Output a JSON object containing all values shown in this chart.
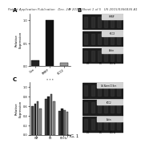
{
  "header_text": "Patent Application Publication   Dec. 24, 2015  Sheet 1 of 5   US 2015/0366836 A1",
  "footer_text": "FIG. 1",
  "bg_color": "#f5f5f5",
  "text_color": "#000000",
  "header_fontsize": 2.8,
  "footer_fontsize": 3.5,
  "panel_A_label": "A",
  "panel_A_bars": [
    0.12,
    1.0,
    0.07
  ],
  "panel_A_colors": [
    "#222222",
    "#111111",
    "#999999"
  ],
  "panel_A_ylabel": "Relative\nExpression",
  "panel_A_xticks": [
    "Con",
    "FMRP",
    "KCC2"
  ],
  "panel_A_ylim": [
    0,
    1.15
  ],
  "panel_A_yticks": [
    0,
    0.5,
    1.0
  ],
  "panel_B_label": "B",
  "panel_B_blot_bg": "#1a1a1a",
  "panel_B_label_bg": "#cccccc",
  "panel_B_blot1_label": "FMRP",
  "panel_B_blot2_label": "KCC2",
  "panel_B_blot3_label": "Actin",
  "panel_C_label": "C",
  "panel_C_groups": 3,
  "panel_C_bars_per_group": 4,
  "panel_C_values": [
    [
      0.6,
      0.65,
      0.7,
      0.55
    ],
    [
      0.75,
      0.8,
      0.85,
      0.7
    ],
    [
      0.5,
      0.55,
      0.52,
      0.48
    ]
  ],
  "panel_C_colors": [
    "#444444",
    "#222222",
    "#666666",
    "#888888"
  ],
  "panel_C_ylabel": "Relative\nExpression",
  "panel_C_xticks": [
    "WT",
    "FX",
    "FX+b"
  ],
  "panel_C_ylim": [
    0,
    1.1
  ],
  "panel_D_blot1_label": "Col.Norm.Cl.Ser.",
  "panel_D_blot2_label": "KCC2",
  "panel_D_blot3_label": "Actin"
}
